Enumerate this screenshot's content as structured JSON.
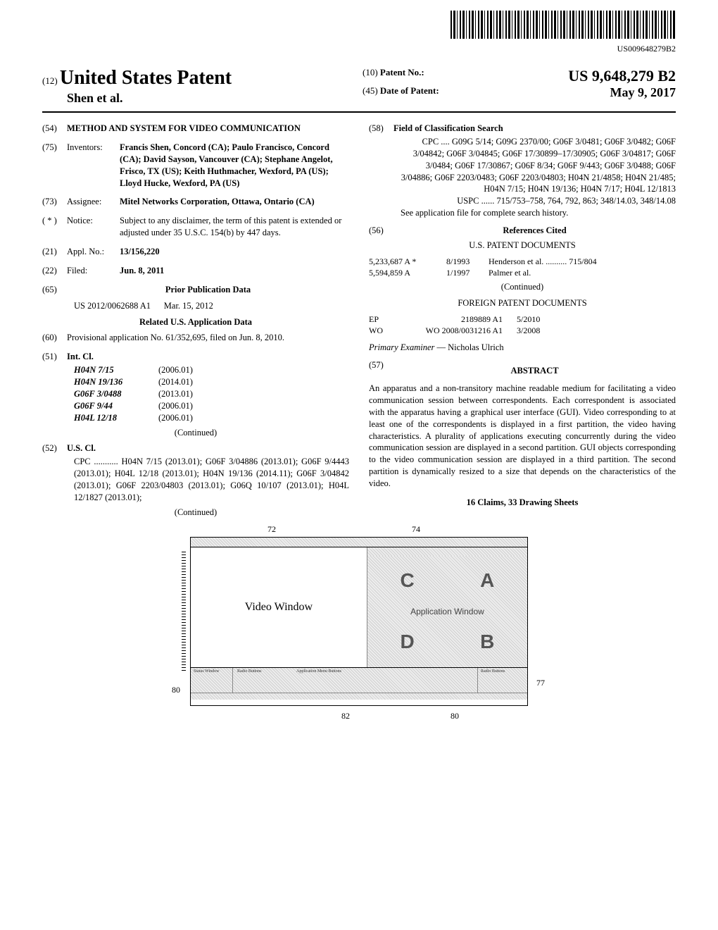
{
  "barcode_number": "US009648279B2",
  "header": {
    "kind_code": "(12)",
    "kind_label": "United States Patent",
    "authors": "Shen et al.",
    "patent_no_code": "(10)",
    "patent_no_label": "Patent No.:",
    "patent_no": "US 9,648,279 B2",
    "date_code": "(45)",
    "date_label": "Date of Patent:",
    "date": "May 9, 2017"
  },
  "left": {
    "title_code": "(54)",
    "title": "METHOD AND SYSTEM FOR VIDEO COMMUNICATION",
    "inventors_code": "(75)",
    "inventors_label": "Inventors:",
    "inventors": "Francis Shen, Concord (CA); Paulo Francisco, Concord (CA); David Sayson, Vancouver (CA); Stephane Angelot, Frisco, TX (US); Keith Huthmacher, Wexford, PA (US); Lloyd Hucke, Wexford, PA (US)",
    "assignee_code": "(73)",
    "assignee_label": "Assignee:",
    "assignee": "Mitel Networks Corporation, Ottawa, Ontario (CA)",
    "notice_code": "( * )",
    "notice_label": "Notice:",
    "notice": "Subject to any disclaimer, the term of this patent is extended or adjusted under 35 U.S.C. 154(b) by 447 days.",
    "applno_code": "(21)",
    "applno_label": "Appl. No.:",
    "applno": "13/156,220",
    "filed_code": "(22)",
    "filed_label": "Filed:",
    "filed": "Jun. 8, 2011",
    "priorpub_code": "(65)",
    "priorpub_title": "Prior Publication Data",
    "priorpub_num": "US 2012/0062688 A1",
    "priorpub_date": "Mar. 15, 2012",
    "related_title": "Related U.S. Application Data",
    "related_code": "(60)",
    "related_body": "Provisional application No. 61/352,695, filed on Jun. 8, 2010.",
    "intcl_code": "(51)",
    "intcl_label": "Int. Cl.",
    "intcl": [
      {
        "code": "H04N 7/15",
        "date": "(2006.01)"
      },
      {
        "code": "H04N 19/136",
        "date": "(2014.01)"
      },
      {
        "code": "G06F 3/0488",
        "date": "(2013.01)"
      },
      {
        "code": "G06F 9/44",
        "date": "(2006.01)"
      },
      {
        "code": "H04L 12/18",
        "date": "(2006.01)"
      }
    ],
    "intcl_continued": "(Continued)",
    "uscl_code": "(52)",
    "uscl_label": "U.S. Cl.",
    "uscl_body": "CPC ........... H04N 7/15 (2013.01); G06F 3/04886 (2013.01); G06F 9/4443 (2013.01); H04L 12/18 (2013.01); H04N 19/136 (2014.11); G06F 3/04842 (2013.01); G06F 2203/04803 (2013.01); G06Q 10/107 (2013.01); H04L 12/1827 (2013.01);",
    "uscl_continued": "(Continued)"
  },
  "right": {
    "field_code": "(58)",
    "field_label": "Field of Classification Search",
    "field_cpc": "CPC .... G09G 5/14; G09G 2370/00; G06F 3/0481; G06F 3/0482; G06F 3/04842; G06F 3/04845; G06F 17/30899–17/30905; G06F 3/04817; G06F 3/0484; G06F 17/30867; G06F 8/34; G06F 9/443; G06F 3/0488; G06F 3/04886; G06F 2203/0483; G06F 2203/04803; H04N 21/4858; H04N 21/485; H04N 7/15; H04N 19/136; H04N 7/17; H04L 12/1813",
    "field_uspc": "USPC ...... 715/753–758, 764, 792, 863; 348/14.03, 348/14.08",
    "field_note": "See application file for complete search history.",
    "refs_code": "(56)",
    "refs_title": "References Cited",
    "refs_us_title": "U.S. PATENT DOCUMENTS",
    "refs_us": [
      {
        "num": "5,233,687 A *",
        "date": "8/1993",
        "who": "Henderson et al. .......... 715/804"
      },
      {
        "num": "5,594,859 A",
        "date": "1/1997",
        "who": "Palmer et al."
      }
    ],
    "refs_us_continued": "(Continued)",
    "refs_foreign_title": "FOREIGN PATENT DOCUMENTS",
    "refs_foreign": [
      {
        "cc": "EP",
        "num": "2189889 A1",
        "date": "5/2010"
      },
      {
        "cc": "WO",
        "num": "WO 2008/0031216 A1",
        "date": "3/2008"
      }
    ],
    "examiner_label": "Primary Examiner",
    "examiner": " — Nicholas Ulrich",
    "abstract_code": "(57)",
    "abstract_title": "ABSTRACT",
    "abstract_body": "An apparatus and a non-transitory machine readable medium for facilitating a video communication session between correspondents. Each correspondent is associated with the apparatus having a graphical user interface (GUI). Video corresponding to at least one of the correspondents is displayed in a first partition, the video having characteristics. A plurality of applications executing concurrently during the video communication session are displayed in a second partition. GUI objects corresponding to the video communication session are displayed in a third partition. The second partition is dynamically resized to a size that depends on the characteristics of the video.",
    "claims": "16 Claims, 33 Drawing Sheets"
  },
  "diagram": {
    "label_72": "72",
    "label_74": "74",
    "label_77": "77",
    "label_80a": "80",
    "label_80b": "80",
    "label_82": "82",
    "video_label": "Video Window",
    "app_label": "Application Window",
    "A": "A",
    "B": "B",
    "C": "C",
    "D": "D",
    "radio_label": "Radio Buttons",
    "status_label": "Status Window",
    "appmenu_label": "Application Menu Buttons",
    "radiobtn_label": "Radio Buttons"
  }
}
